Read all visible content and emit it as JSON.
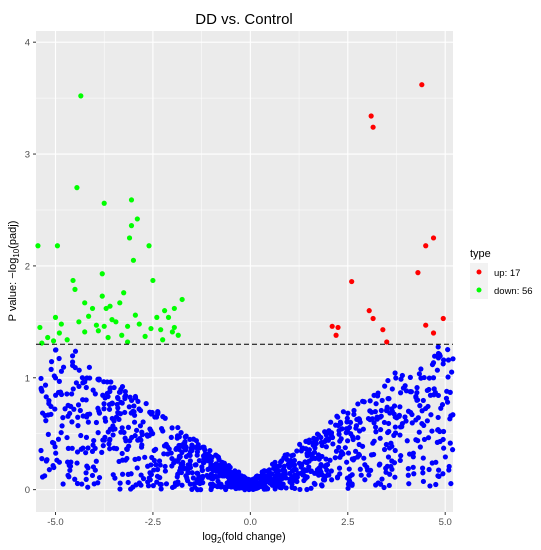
{
  "chart_data": {
    "type": "scatter",
    "title": "DD vs. Control",
    "xlabel": {
      "main": "log",
      "sub": "2",
      "rest": "(fold change)"
    },
    "ylabel": {
      "main": "P value: −log",
      "sub": "10",
      "rest": "(padj)"
    },
    "xlim": [
      -5.5,
      5.2
    ],
    "ylim": [
      -0.2,
      4.1
    ],
    "x_ticks": [
      -5.0,
      -2.5,
      0.0,
      2.5,
      5.0
    ],
    "x_tick_labels": [
      "-5.0",
      "-2.5",
      "0.0",
      "2.5",
      "5.0"
    ],
    "y_ticks": [
      0,
      1,
      2,
      3,
      4
    ],
    "y_tick_labels": [
      "0",
      "1",
      "2",
      "3",
      "4"
    ],
    "threshold_y": 1.3,
    "legend": {
      "title": "type",
      "position": "right",
      "entries": [
        {
          "label": "up: 17",
          "color": "#ff0000"
        },
        {
          "label": "down: 56",
          "color": "#00ff00"
        }
      ]
    },
    "colors": {
      "up": "#ff0000",
      "down": "#00ff00",
      "nonsig": "#0000ff",
      "panel": "#ebebeb",
      "grid": "#ffffff"
    },
    "series": [
      {
        "name": "up: 17",
        "color": "#ff0000",
        "points": [
          [
            4.4,
            3.62
          ],
          [
            3.1,
            3.34
          ],
          [
            3.15,
            3.24
          ],
          [
            4.7,
            2.25
          ],
          [
            4.5,
            2.18
          ],
          [
            4.3,
            1.94
          ],
          [
            2.6,
            1.86
          ],
          [
            3.05,
            1.6
          ],
          [
            3.15,
            1.53
          ],
          [
            4.95,
            1.53
          ],
          [
            2.1,
            1.46
          ],
          [
            2.25,
            1.45
          ],
          [
            4.5,
            1.47
          ],
          [
            4.7,
            1.4
          ],
          [
            2.2,
            1.38
          ],
          [
            3.4,
            1.43
          ],
          [
            3.5,
            1.32
          ]
        ]
      },
      {
        "name": "down: 56",
        "color": "#00ff00",
        "points": [
          [
            -4.35,
            3.52
          ],
          [
            -4.45,
            2.7
          ],
          [
            -3.05,
            2.59
          ],
          [
            -3.75,
            2.56
          ],
          [
            -2.9,
            2.42
          ],
          [
            -3.05,
            2.36
          ],
          [
            -3.1,
            2.25
          ],
          [
            -5.45,
            2.18
          ],
          [
            -4.95,
            2.18
          ],
          [
            -2.6,
            2.18
          ],
          [
            -3.0,
            2.05
          ],
          [
            -3.8,
            1.93
          ],
          [
            -4.55,
            1.87
          ],
          [
            -2.5,
            1.87
          ],
          [
            -3.25,
            1.76
          ],
          [
            -3.8,
            1.73
          ],
          [
            -4.25,
            1.67
          ],
          [
            -1.75,
            1.7
          ],
          [
            -3.7,
            1.62
          ],
          [
            -3.6,
            1.64
          ],
          [
            -1.95,
            1.62
          ],
          [
            -2.4,
            1.54
          ],
          [
            -2.1,
            1.54
          ],
          [
            -5.0,
            1.54
          ],
          [
            -3.55,
            1.52
          ],
          [
            -4.85,
            1.48
          ],
          [
            -1.95,
            1.45
          ],
          [
            -3.75,
            1.46
          ],
          [
            -3.15,
            1.46
          ],
          [
            -2.3,
            1.43
          ],
          [
            -2.0,
            1.41
          ],
          [
            -4.25,
            1.41
          ],
          [
            -3.3,
            1.38
          ],
          [
            -5.05,
            1.33
          ],
          [
            -3.15,
            1.32
          ],
          [
            -5.35,
            1.31
          ],
          [
            -4.5,
            1.79
          ],
          [
            -2.7,
            1.37
          ],
          [
            -3.45,
            1.5
          ],
          [
            -4.15,
            1.55
          ],
          [
            -2.2,
            1.6
          ],
          [
            -4.7,
            1.34
          ],
          [
            -3.9,
            1.42
          ],
          [
            -2.85,
            1.48
          ],
          [
            -1.85,
            1.38
          ],
          [
            -5.2,
            1.36
          ],
          [
            -4.05,
            1.62
          ],
          [
            -3.35,
            1.67
          ],
          [
            -2.55,
            1.44
          ],
          [
            -4.4,
            1.5
          ],
          [
            -3.65,
            1.36
          ],
          [
            -2.25,
            1.34
          ],
          [
            -4.9,
            1.4
          ],
          [
            -3.95,
            1.47
          ],
          [
            -2.95,
            1.56
          ],
          [
            -5.4,
            1.45
          ]
        ]
      }
    ],
    "nonsig_count": 1200
  }
}
